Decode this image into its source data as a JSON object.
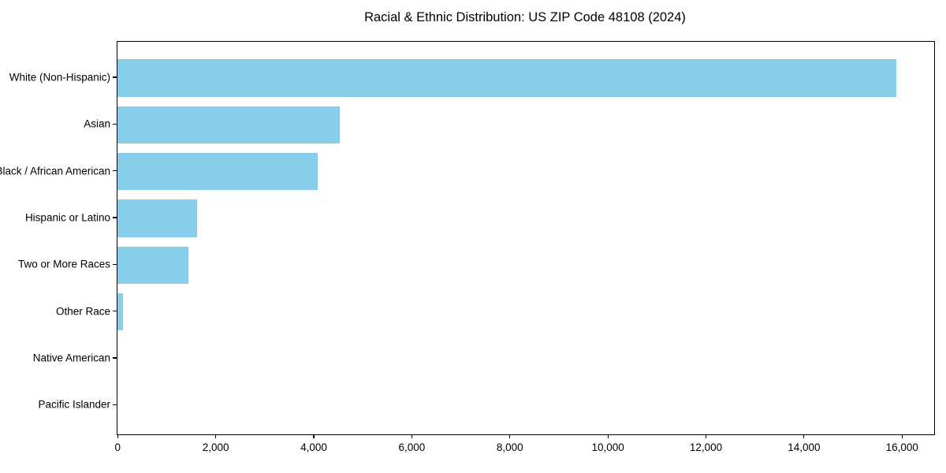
{
  "chart_data": {
    "type": "bar",
    "orientation": "horizontal",
    "title": "Racial & Ethnic Distribution: US ZIP Code 48108 (2024)",
    "categories": [
      "White (Non-Hispanic)",
      "Asian",
      "Black / African American",
      "Hispanic or Latino",
      "Two or More Races",
      "Other Race",
      "Native American",
      "Pacific Islander"
    ],
    "values": [
      15890,
      4540,
      4090,
      1630,
      1440,
      110,
      0,
      0
    ],
    "xlabel": "",
    "ylabel": "",
    "xlim": [
      0,
      16660
    ],
    "x_ticks": [
      0,
      2000,
      4000,
      6000,
      8000,
      10000,
      12000,
      14000,
      16000
    ],
    "x_tick_labels": [
      "0",
      "2,000",
      "4,000",
      "6,000",
      "8,000",
      "10,000",
      "12,000",
      "14,000",
      "16,000"
    ],
    "bar_color": "#87CEEB",
    "frame_color": "#000000",
    "background_color": "#ffffff",
    "grid": false,
    "legend": null
  }
}
